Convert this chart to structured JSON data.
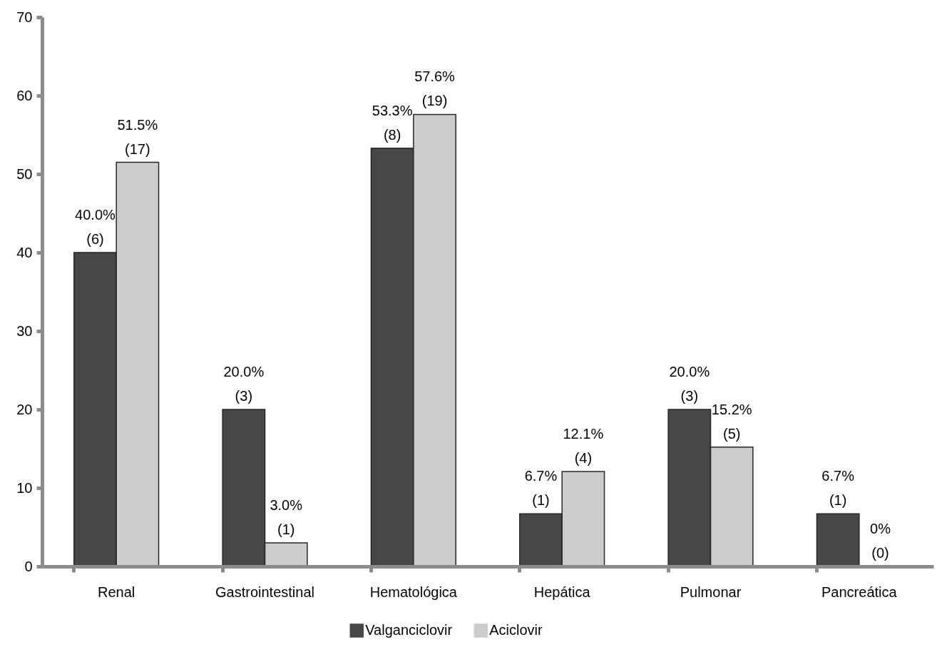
{
  "chart_data": {
    "type": "bar",
    "categories": [
      "Renal",
      "Gastrointestinal",
      "Hematológica",
      "Hepática",
      "Pulmonar",
      "Pancreática"
    ],
    "series": [
      {
        "name": "Valganciclovir",
        "color": "#474747",
        "values": [
          40.0,
          20.0,
          53.3,
          6.7,
          20.0,
          6.7
        ],
        "value_labels": [
          "40.0%\n(6)",
          "20.0%\n(3)",
          "53.3%\n(8)",
          "6.7%\n(1)",
          "20.0%\n(3)",
          "6.7%\n(1)"
        ]
      },
      {
        "name": "Aciclovir",
        "color": "#cccccc",
        "values": [
          51.5,
          3.0,
          57.6,
          12.1,
          15.2,
          0
        ],
        "value_labels": [
          "51.5%\n(17)",
          "3.0%\n(1)",
          "57.6%\n(19)",
          "12.1%\n(4)",
          "15.2%\n(5)",
          "0%\n(0)"
        ]
      }
    ],
    "ylim": [
      0,
      70
    ],
    "yticks": [
      0,
      10,
      20,
      30,
      40,
      50,
      60,
      70
    ],
    "grid": false,
    "legend": "bottom"
  }
}
